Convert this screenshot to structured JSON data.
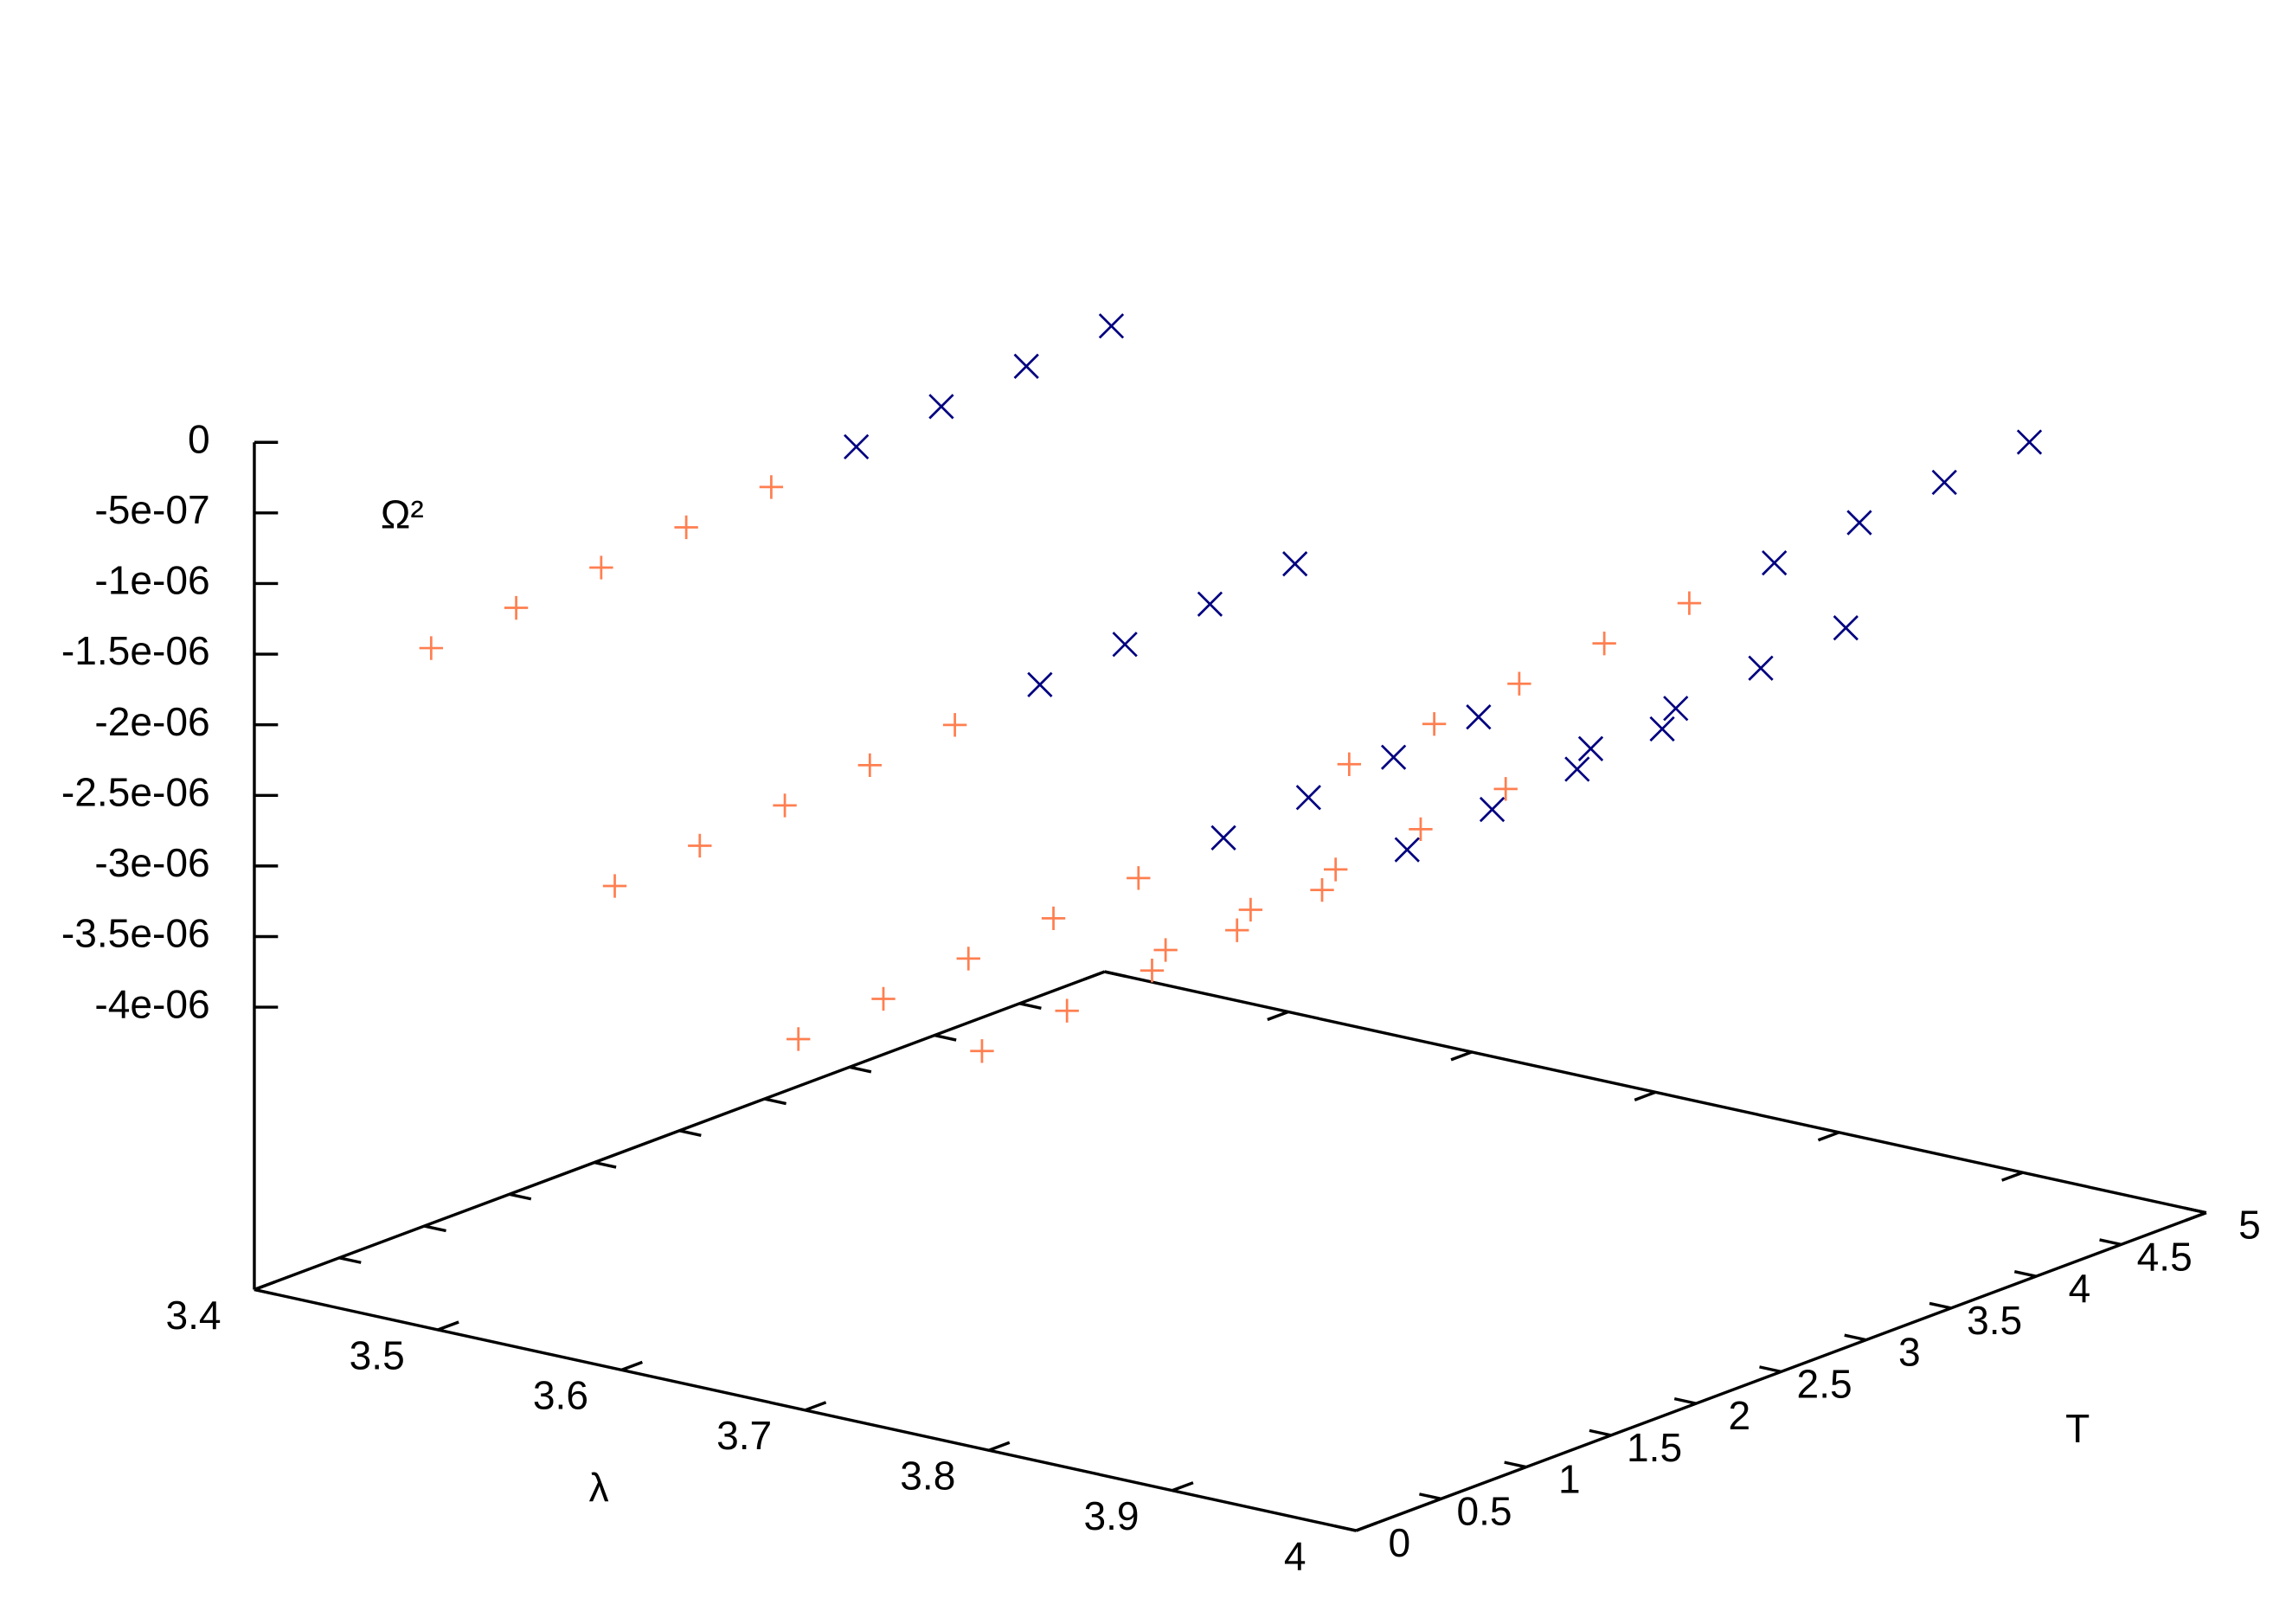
{
  "chart_data": {
    "type": "scatter3d",
    "xlabel": "λ",
    "ylabel": "T",
    "zlabel": "Ω²",
    "xlim": [
      3.4,
      4
    ],
    "xticks": [
      3.4,
      3.5,
      3.6,
      3.7,
      3.8,
      3.9,
      4
    ],
    "ylim": [
      0,
      5
    ],
    "yticks": [
      0,
      0.5,
      1,
      1.5,
      2,
      2.5,
      3,
      3.5,
      4,
      4.5,
      5
    ],
    "zlim": [
      -4e-06,
      0
    ],
    "zticks": [
      0,
      {
        "value": -5e-07,
        "label": "-5e-07"
      },
      {
        "value": -1e-06,
        "label": "-1e-06"
      },
      {
        "value": -1.5e-06,
        "label": "-1.5e-06"
      },
      {
        "value": -2e-06,
        "label": "-2e-06"
      },
      {
        "value": -2.5e-06,
        "label": "-2.5e-06"
      },
      {
        "value": -3e-06,
        "label": "-3e-06"
      },
      {
        "value": -3.5e-06,
        "label": "-3.5e-06"
      },
      {
        "value": -4e-06,
        "label": "-4e-06"
      }
    ],
    "ticslevel": 0.5,
    "series": [
      {
        "color": "#ff7f50",
        "marker": "plus",
        "x": [
          3.45,
          3.45,
          3.45,
          3.45,
          3.45,
          3.55,
          3.55,
          3.55,
          3.55,
          3.55,
          3.65,
          3.65,
          3.65,
          3.65,
          3.65,
          3.75,
          3.75,
          3.75,
          3.75,
          3.75,
          3.85,
          3.85,
          3.85,
          3.85,
          3.85,
          3.95,
          3.95,
          3.95,
          3.95,
          3.95
        ],
        "y": [
          0.5,
          1,
          1.5,
          2,
          2.5,
          0.5,
          1,
          1.5,
          2,
          2.5,
          0.5,
          1,
          1.5,
          2,
          2.5,
          0.5,
          1,
          1.5,
          2,
          2.5,
          0.5,
          1,
          1.5,
          2,
          2.5,
          0.5,
          1,
          1.5,
          2,
          2.5
        ],
        "z": [
          -1.54e-06,
          -1.48e-06,
          -1.42e-06,
          -1.36e-06,
          -1.3e-06,
          -2.94e-06,
          -2.88e-06,
          -2.82e-06,
          -2.76e-06,
          -2.7e-06,
          -3.74e-06,
          -3.68e-06,
          -3.62e-06,
          -3.56e-06,
          -3.5e-06,
          -3.54e-06,
          -3.48e-06,
          -3.42e-06,
          -3.36e-06,
          -3.3e-06,
          -2.54e-06,
          -2.48e-06,
          -2.42e-06,
          -2.36e-06,
          -2.3e-06,
          -9.4e-07,
          -8.8e-07,
          -8.2e-07,
          -7.6e-07,
          -7e-07
        ]
      },
      {
        "color": "#000080",
        "marker": "cross",
        "x": [
          3.45,
          3.45,
          3.45,
          3.45,
          3.55,
          3.55,
          3.55,
          3.55,
          3.65,
          3.65,
          3.65,
          3.65,
          3.75,
          3.75,
          3.75,
          3.75,
          3.85,
          3.85,
          3.85,
          3.85,
          3.95,
          3.95,
          3.95,
          3.95
        ],
        "y": [
          3,
          3.5,
          4,
          4.5,
          3,
          3.5,
          4,
          4.5,
          3,
          3.5,
          4,
          4.5,
          3,
          3.5,
          4,
          4.5,
          3,
          3.5,
          4,
          4.5,
          3,
          3.5,
          4,
          4.5
        ],
        "z": [
          -1.24e-06,
          -1.18e-06,
          -1.12e-06,
          -1.06e-06,
          -2.64e-06,
          -2.58e-06,
          -2.52e-06,
          -2.46e-06,
          -3.44e-06,
          -3.38e-06,
          -3.32e-06,
          -3.26e-06,
          -3.24e-06,
          -3.18e-06,
          -3.12e-06,
          -3.06e-06,
          -2.24e-06,
          -2.18e-06,
          -2.12e-06,
          -2.06e-06,
          -6.4e-07,
          -5.8e-07,
          -5.2e-07,
          -4.6e-07
        ]
      }
    ]
  }
}
